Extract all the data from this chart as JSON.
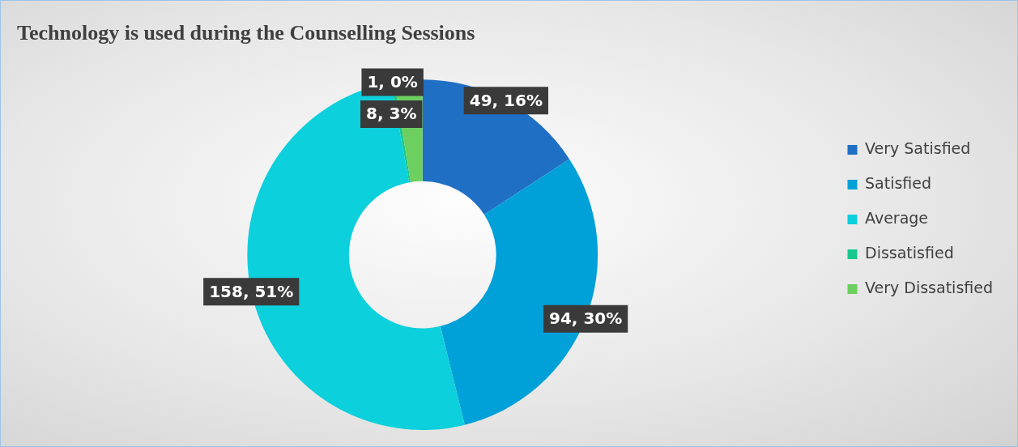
{
  "chart_data": {
    "type": "donut",
    "title": "Technology is used during the Counselling Sessions",
    "categories": [
      "Very Satisfied",
      "Satisfied",
      "Average",
      "Dissatisfied",
      "Very Dissatisfied"
    ],
    "values": [
      49,
      94,
      158,
      1,
      8
    ],
    "colors": [
      "#1f6fc5",
      "#00a0d8",
      "#0cd0dc",
      "#17c98f",
      "#6ccf5f"
    ],
    "value_labels": [
      "49, 16%",
      "94, 30%",
      "158, 51%",
      "1, 0%",
      "8, 3%"
    ],
    "legend": "right"
  }
}
